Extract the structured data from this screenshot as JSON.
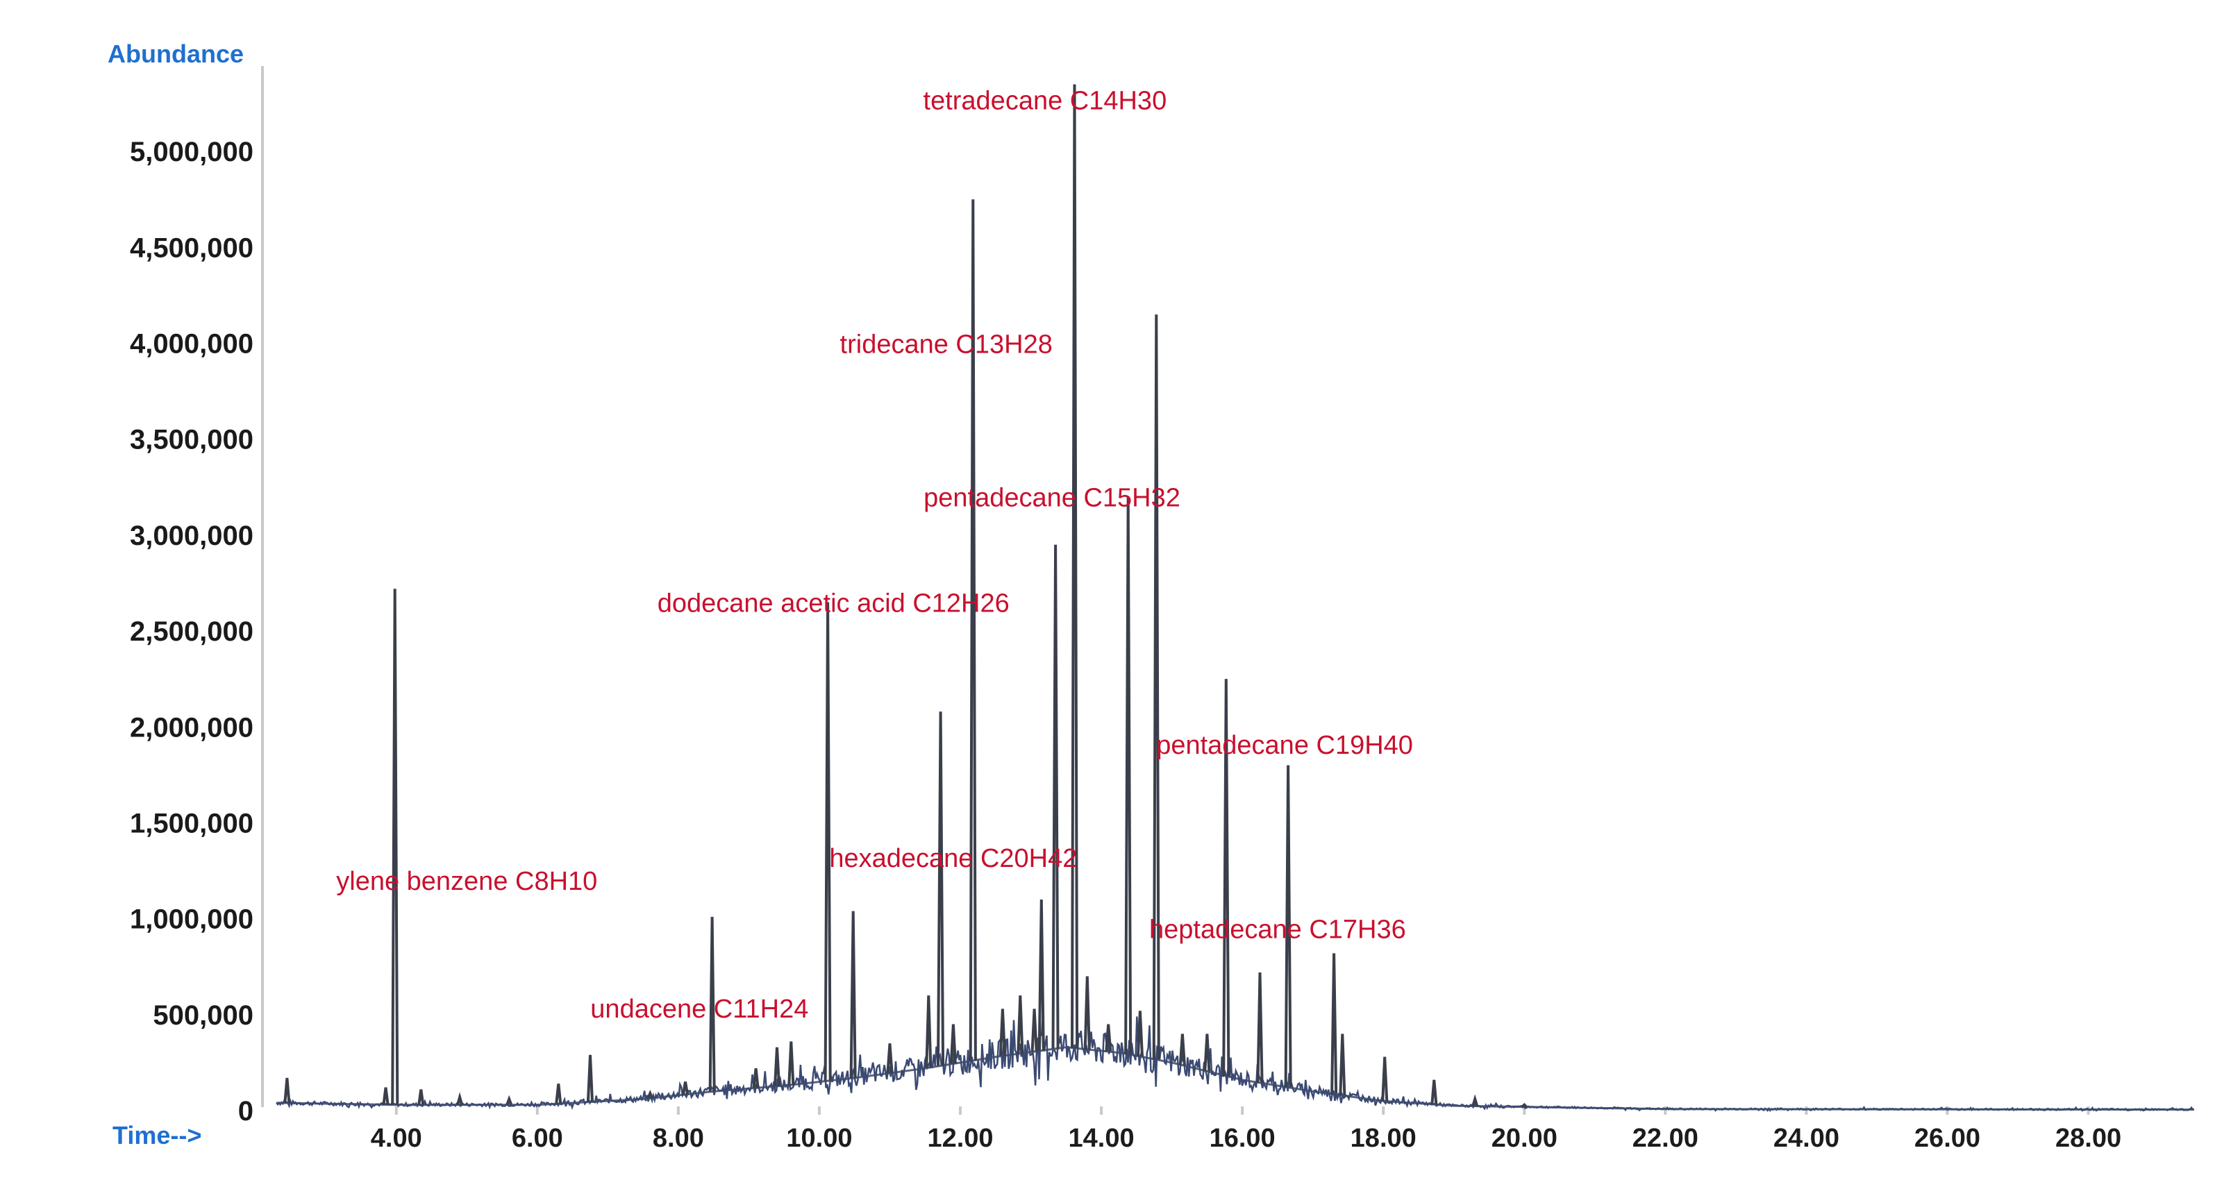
{
  "chart_data": {
    "type": "line",
    "ylabel": "Abundance",
    "xlabel": "Time-->",
    "ylim": [
      0,
      5500000
    ],
    "xlim": [
      2.2,
      29.6
    ],
    "yticks": [
      {
        "value": 0,
        "label": "0"
      },
      {
        "value": 500000,
        "label": "500,000"
      },
      {
        "value": 1000000,
        "label": "1,000,000"
      },
      {
        "value": 1500000,
        "label": "1,500,000"
      },
      {
        "value": 2000000,
        "label": "2,000,000"
      },
      {
        "value": 2500000,
        "label": "2,500,000"
      },
      {
        "value": 3000000,
        "label": "3,000,000"
      },
      {
        "value": 3500000,
        "label": "3,500,000"
      },
      {
        "value": 4000000,
        "label": "4,000,000"
      },
      {
        "value": 4500000,
        "label": "4,500,000"
      },
      {
        "value": 5000000,
        "label": "5,000,000"
      }
    ],
    "xticks": [
      {
        "value": 4,
        "label": "4.00"
      },
      {
        "value": 6,
        "label": "6.00"
      },
      {
        "value": 8,
        "label": "8.00"
      },
      {
        "value": 10,
        "label": "10.00"
      },
      {
        "value": 12,
        "label": "12.00"
      },
      {
        "value": 14,
        "label": "14.00"
      },
      {
        "value": 16,
        "label": "16.00"
      },
      {
        "value": 18,
        "label": "18.00"
      },
      {
        "value": 20,
        "label": "20.00"
      },
      {
        "value": 22,
        "label": "22.00"
      },
      {
        "value": 24,
        "label": "24.00"
      },
      {
        "value": 26,
        "label": "26.00"
      },
      {
        "value": 28,
        "label": "28.00"
      }
    ],
    "baseline": [
      {
        "x": 2.3,
        "y": 40000
      },
      {
        "x": 4.0,
        "y": 30000
      },
      {
        "x": 6.0,
        "y": 30000
      },
      {
        "x": 7.5,
        "y": 60000
      },
      {
        "x": 8.5,
        "y": 100000
      },
      {
        "x": 9.5,
        "y": 130000
      },
      {
        "x": 10.5,
        "y": 170000
      },
      {
        "x": 11.5,
        "y": 220000
      },
      {
        "x": 12.5,
        "y": 280000
      },
      {
        "x": 13.5,
        "y": 330000
      },
      {
        "x": 14.3,
        "y": 300000
      },
      {
        "x": 15.0,
        "y": 250000
      },
      {
        "x": 16.0,
        "y": 160000
      },
      {
        "x": 17.0,
        "y": 100000
      },
      {
        "x": 18.0,
        "y": 50000
      },
      {
        "x": 19.0,
        "y": 25000
      },
      {
        "x": 22.0,
        "y": 8000
      },
      {
        "x": 29.5,
        "y": 5000
      }
    ],
    "peaks": [
      {
        "x": 2.45,
        "y": 170000
      },
      {
        "x": 3.85,
        "y": 120000
      },
      {
        "x": 3.98,
        "y": 2720000
      },
      {
        "x": 4.35,
        "y": 110000
      },
      {
        "x": 4.9,
        "y": 70000
      },
      {
        "x": 5.6,
        "y": 60000
      },
      {
        "x": 6.3,
        "y": 140000
      },
      {
        "x": 6.75,
        "y": 290000
      },
      {
        "x": 7.6,
        "y": 90000
      },
      {
        "x": 8.1,
        "y": 150000
      },
      {
        "x": 8.48,
        "y": 1010000
      },
      {
        "x": 9.1,
        "y": 220000
      },
      {
        "x": 9.4,
        "y": 330000
      },
      {
        "x": 9.6,
        "y": 360000
      },
      {
        "x": 10.12,
        "y": 2650000
      },
      {
        "x": 10.48,
        "y": 1040000
      },
      {
        "x": 11.0,
        "y": 350000
      },
      {
        "x": 11.55,
        "y": 600000
      },
      {
        "x": 11.72,
        "y": 2080000
      },
      {
        "x": 11.9,
        "y": 450000
      },
      {
        "x": 12.18,
        "y": 4750000
      },
      {
        "x": 12.6,
        "y": 530000
      },
      {
        "x": 12.85,
        "y": 600000
      },
      {
        "x": 13.05,
        "y": 530000
      },
      {
        "x": 13.15,
        "y": 1100000
      },
      {
        "x": 13.35,
        "y": 2950000
      },
      {
        "x": 13.62,
        "y": 5350000
      },
      {
        "x": 13.8,
        "y": 700000
      },
      {
        "x": 14.1,
        "y": 450000
      },
      {
        "x": 14.38,
        "y": 3200000
      },
      {
        "x": 14.55,
        "y": 520000
      },
      {
        "x": 14.78,
        "y": 4150000
      },
      {
        "x": 15.15,
        "y": 400000
      },
      {
        "x": 15.5,
        "y": 400000
      },
      {
        "x": 15.77,
        "y": 2250000
      },
      {
        "x": 16.25,
        "y": 720000
      },
      {
        "x": 16.65,
        "y": 1800000
      },
      {
        "x": 17.3,
        "y": 820000
      },
      {
        "x": 17.42,
        "y": 400000
      },
      {
        "x": 18.02,
        "y": 280000
      },
      {
        "x": 18.72,
        "y": 160000
      },
      {
        "x": 19.3,
        "y": 60000
      },
      {
        "x": 20.0,
        "y": 30000
      }
    ],
    "annotations": [
      {
        "text": "tetradecane C14H30",
        "x": 13.2,
        "y": 5220000
      },
      {
        "text": "tridecane C13H28",
        "x": 11.8,
        "y": 3950000
      },
      {
        "text": "pentadecane C15H32",
        "x": 13.3,
        "y": 3150000
      },
      {
        "text": "dodecane acetic acid C12H26",
        "x": 10.2,
        "y": 2600000
      },
      {
        "text": "pentadecane C19H40",
        "x": 16.6,
        "y": 1860000
      },
      {
        "text": "hexadecane C20H42",
        "x": 11.9,
        "y": 1270000
      },
      {
        "text": "ylene benzene C8H10",
        "x": 5.0,
        "y": 1150000
      },
      {
        "text": "heptadecane C17H36",
        "x": 16.5,
        "y": 900000
      },
      {
        "text": "undacene C11H24",
        "x": 8.3,
        "y": 485000
      }
    ]
  }
}
